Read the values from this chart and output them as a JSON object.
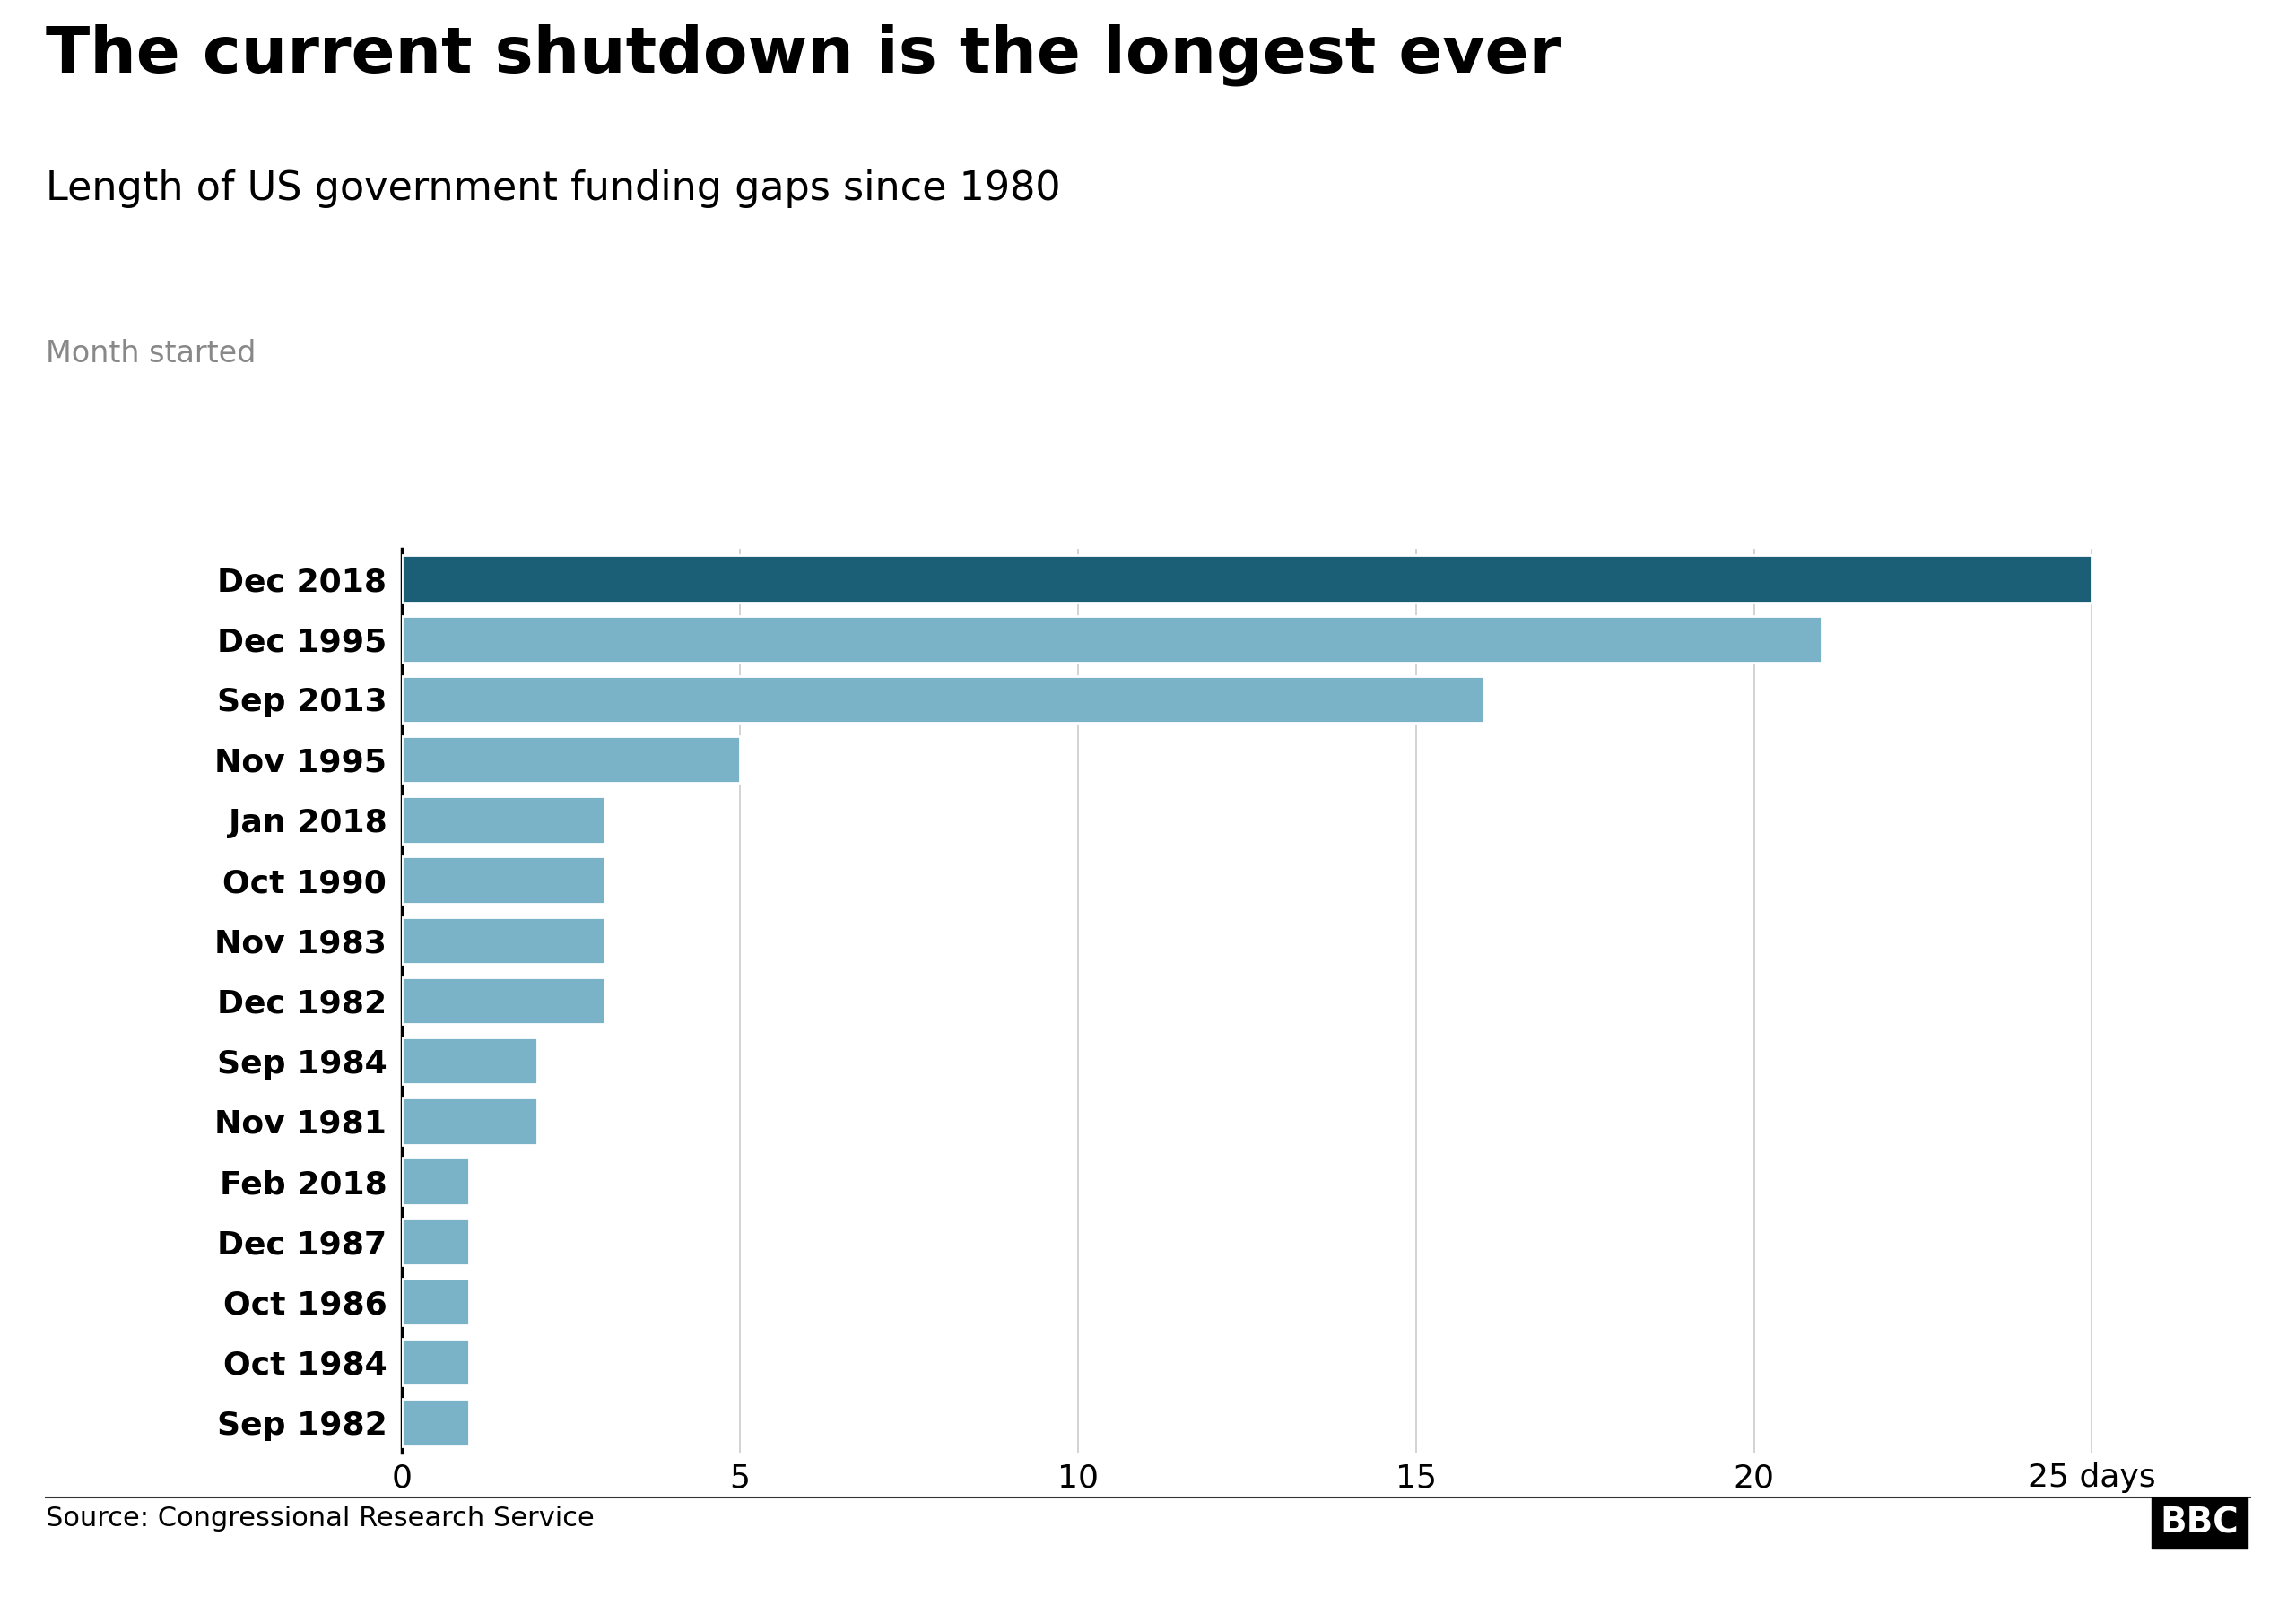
{
  "title": "The current shutdown is the longest ever",
  "subtitle": "Length of US government funding gaps since 1980",
  "axis_label": "Month started",
  "source": "Source: Congressional Research Service",
  "bbc_logo": "BBC",
  "categories": [
    "Dec 2018",
    "Dec 1995",
    "Sep 2013",
    "Nov 1995",
    "Jan 2018",
    "Oct 1990",
    "Nov 1983",
    "Dec 1982",
    "Sep 1984",
    "Nov 1981",
    "Feb 2018",
    "Dec 1987",
    "Oct 1986",
    "Oct 1984",
    "Sep 1982"
  ],
  "values": [
    25,
    21,
    16,
    5,
    3,
    3,
    3,
    3,
    2,
    2,
    1,
    1,
    1,
    1,
    1
  ],
  "bar_colors": [
    "#1a5f75",
    "#7ab3c8",
    "#7ab3c8",
    "#7ab3c8",
    "#7ab3c8",
    "#7ab3c8",
    "#7ab3c8",
    "#7ab3c8",
    "#7ab3c8",
    "#7ab3c8",
    "#7ab3c8",
    "#7ab3c8",
    "#7ab3c8",
    "#7ab3c8",
    "#7ab3c8"
  ],
  "xlim": [
    0,
    27
  ],
  "xticks": [
    0,
    5,
    10,
    15,
    20,
    25
  ],
  "xtick_labels": [
    "0",
    "5",
    "10",
    "15",
    "20",
    "25 days"
  ],
  "background_color": "#ffffff",
  "title_fontsize": 52,
  "subtitle_fontsize": 32,
  "axis_label_fontsize": 24,
  "tick_fontsize": 26,
  "source_fontsize": 22,
  "bar_height": 0.78
}
